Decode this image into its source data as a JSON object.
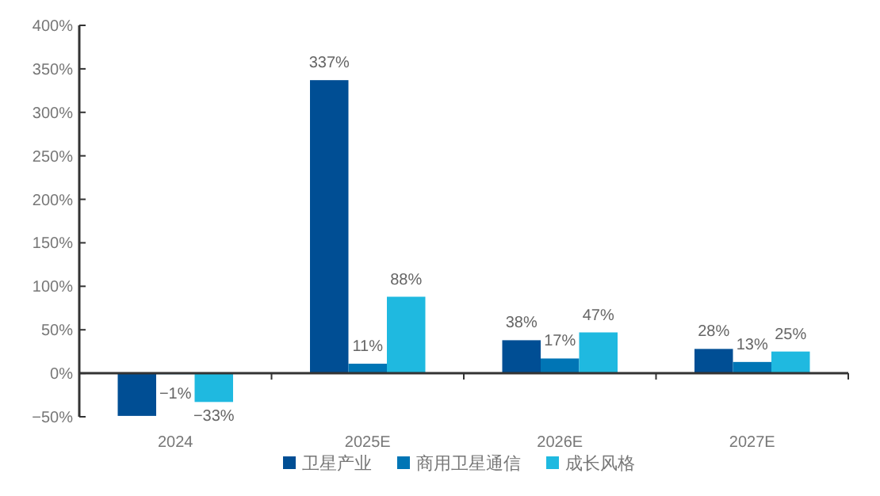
{
  "chart_data": {
    "type": "bar",
    "categories": [
      "2024",
      "2025E",
      "2026E",
      "2027E"
    ],
    "series": [
      {
        "name": "卫星产业",
        "color": "#004e94",
        "values": [
          -49,
          337,
          38,
          28
        ],
        "value_labels": [
          null,
          "337%",
          "38%",
          "28%"
        ]
      },
      {
        "name": "商用卫星通信",
        "color": "#0075b5",
        "values": [
          -1,
          11,
          17,
          13
        ],
        "value_labels": [
          "−1%",
          "11%",
          "17%",
          "13%"
        ]
      },
      {
        "name": "成长风格",
        "color": "#1fb9e0",
        "values": [
          -33,
          88,
          47,
          25
        ],
        "value_labels": [
          "−33%",
          "88%",
          "47%",
          "25%"
        ]
      }
    ],
    "ylim": [
      -50,
      400
    ],
    "yticks": [
      {
        "value": -50,
        "label": "−50%"
      },
      {
        "value": 0,
        "label": "0%"
      },
      {
        "value": 50,
        "label": "50%"
      },
      {
        "value": 100,
        "label": "100%"
      },
      {
        "value": 150,
        "label": "150%"
      },
      {
        "value": 200,
        "label": "200%"
      },
      {
        "value": 250,
        "label": "250%"
      },
      {
        "value": 300,
        "label": "300%"
      },
      {
        "value": 350,
        "label": "350%"
      },
      {
        "value": 400,
        "label": "400%"
      }
    ],
    "legend": "bottom"
  }
}
